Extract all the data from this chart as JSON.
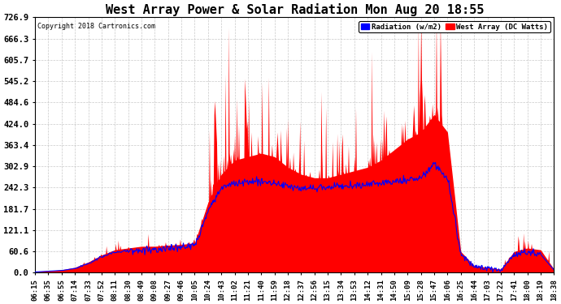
{
  "title": "West Array Power & Solar Radiation Mon Aug 20 18:55",
  "copyright": "Copyright 2018 Cartronics.com",
  "legend_labels": [
    "Radiation (w/m2)",
    "West Array (DC Watts)"
  ],
  "legend_colors": [
    "#0000ff",
    "#ff0000"
  ],
  "ymax": 726.9,
  "ymin": 0.0,
  "yticks": [
    0.0,
    60.6,
    121.1,
    181.7,
    242.3,
    302.9,
    363.4,
    424.0,
    484.6,
    545.2,
    605.7,
    666.3,
    726.9
  ],
  "bg_color": "#ffffff",
  "grid_color": "#bbbbbb",
  "x_labels": [
    "06:15",
    "06:35",
    "06:55",
    "07:14",
    "07:33",
    "07:52",
    "08:11",
    "08:30",
    "08:49",
    "09:08",
    "09:27",
    "09:46",
    "10:05",
    "10:24",
    "10:43",
    "11:02",
    "11:21",
    "11:40",
    "11:59",
    "12:18",
    "12:37",
    "12:56",
    "13:15",
    "13:34",
    "13:53",
    "14:12",
    "14:31",
    "14:50",
    "15:09",
    "15:28",
    "15:47",
    "16:06",
    "16:25",
    "16:44",
    "17:03",
    "17:22",
    "17:41",
    "18:00",
    "18:19",
    "18:38"
  ],
  "title_fontsize": 11,
  "label_fontsize": 6.5,
  "ylabel_fontsize": 7.5,
  "west_seed": 123,
  "rad_seed": 456
}
